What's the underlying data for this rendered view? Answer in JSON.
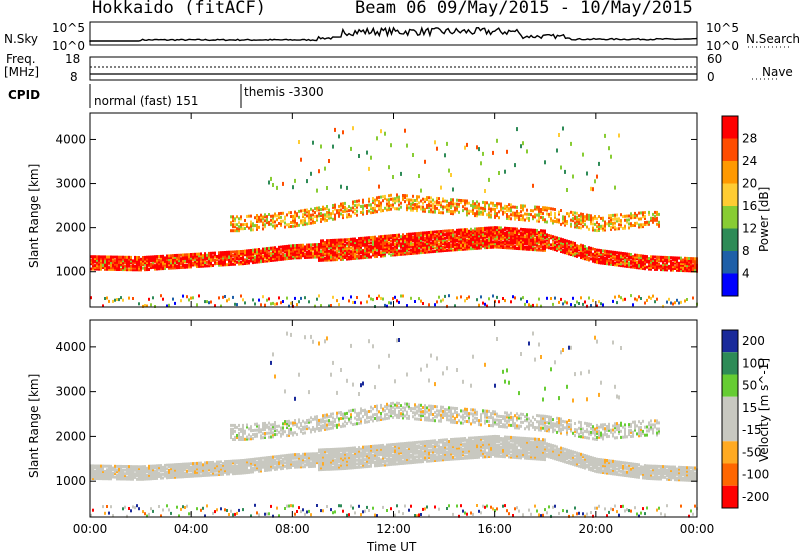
{
  "header": {
    "station": "Hokkaido (fitACF)",
    "beam_date": "Beam 06 09/May/2015 - 10/May/2015"
  },
  "top_panels": {
    "nsky_label": "N.Sky",
    "nsky_ticks": [
      "10^5",
      "10^0"
    ],
    "nsearch_label": "N.Search",
    "freq_label_1": "Freq.",
    "freq_label_2": "[MHz]",
    "freq_ticks": [
      "18",
      "8"
    ],
    "nave_label": "Nave",
    "nave_ticks": [
      "60",
      "0"
    ],
    "cpid_label": "CPID",
    "cpid_entries": [
      "normal (fast) 151",
      "themis -3300"
    ]
  },
  "chart_data": [
    {
      "type": "heatmap",
      "name": "power",
      "xlabel": "Time UT",
      "ylabel": "Slant Range [km]",
      "x_ticks": [
        "00:00",
        "04:00",
        "08:00",
        "12:00",
        "16:00",
        "20:00",
        "00:00"
      ],
      "x_range_hours": [
        0,
        24
      ],
      "y_ticks": [
        1000,
        2000,
        3000,
        4000
      ],
      "ylim": [
        200,
        4600
      ],
      "colorbar": {
        "label": "Power [dB]",
        "ticks": [
          "28",
          "24",
          "20",
          "16",
          "12",
          "8",
          "4"
        ],
        "colors": [
          "#ff0000",
          "#ff4d00",
          "#ff9900",
          "#ffcc33",
          "#88cc33",
          "#2e8b57",
          "#1e5fa8",
          "#0000ff"
        ]
      },
      "main_echo_band": {
        "hours": [
          0,
          2,
          4,
          6,
          8,
          10,
          12,
          14,
          16,
          18,
          20,
          22,
          24
        ],
        "center_km": [
          1200,
          1180,
          1250,
          1320,
          1450,
          1500,
          1600,
          1700,
          1780,
          1700,
          1350,
          1200,
          1150
        ]
      },
      "upper_echo_band": {
        "hours": [
          6,
          8,
          10,
          12,
          14,
          16,
          18,
          20,
          22
        ],
        "center_km": [
          2100,
          2200,
          2400,
          2600,
          2500,
          2400,
          2300,
          2100,
          2200
        ]
      }
    },
    {
      "type": "heatmap",
      "name": "velocity",
      "xlabel": "Time UT",
      "ylabel": "Slant Range [km]",
      "x_ticks": [
        "00:00",
        "04:00",
        "08:00",
        "12:00",
        "16:00",
        "20:00",
        "00:00"
      ],
      "x_range_hours": [
        0,
        24
      ],
      "y_ticks": [
        1000,
        2000,
        3000,
        4000
      ],
      "ylim": [
        200,
        4600
      ],
      "colorbar": {
        "label": "Velocity [m s^-1]",
        "ticks": [
          "200",
          "100",
          "50",
          "15",
          "-15",
          "-50",
          "-100",
          "-200"
        ],
        "colors": [
          "#1a2a9a",
          "#2e8b57",
          "#66cc33",
          "#c8c8c0",
          "#c8c8c0",
          "#ffaa22",
          "#ff6600",
          "#ff0000"
        ]
      }
    }
  ]
}
